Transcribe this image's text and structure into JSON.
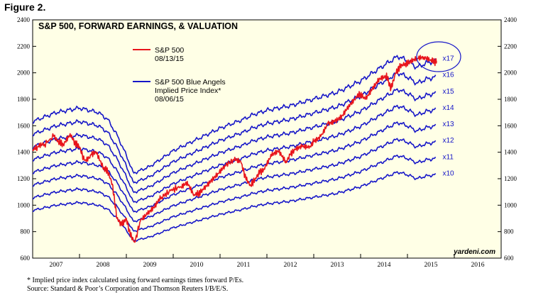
{
  "figure_label": "Figure 2.",
  "footnote": {
    "line1": "*  Implied price index calculated using forward earnings times forward P/Es.",
    "line2": "Source: Standard & Poor’s Corporation and Thomson Reuters I/B/E/S."
  },
  "colors": {
    "plot_bg": "#FFFFE6",
    "sp500": "#E8141B",
    "blue_angels": "#1515C8",
    "watermark": "#000000"
  },
  "chart_data": {
    "type": "line",
    "title": "S&P 500, FORWARD EARNINGS, & VALUATION",
    "watermark": "yardeni.com",
    "legend": [
      {
        "key": "sp500",
        "lines": [
          "S&P 500",
          "08/13/15"
        ]
      },
      {
        "key": "blue_angels",
        "lines": [
          "S&P 500 Blue Angels",
          "Implied Price Index*",
          "08/06/15"
        ]
      }
    ],
    "legend_position": "top-center",
    "x_axis": {
      "min": 2007.0,
      "max": 2017.0,
      "ticks": [
        "2007",
        "2008",
        "2009",
        "2010",
        "2011",
        "2012",
        "2013",
        "2014",
        "2015",
        "2016"
      ]
    },
    "y_axis": {
      "min": 600,
      "max": 2400,
      "ticks": [
        600,
        800,
        1000,
        1200,
        1400,
        1600,
        1800,
        2000,
        2200,
        2400
      ],
      "both_sides": true
    },
    "grid": false,
    "forward_earnings": {
      "x": [
        2007.0,
        2007.5,
        2008.0,
        2008.4,
        2008.6,
        2008.8,
        2009.0,
        2009.15,
        2009.5,
        2010.0,
        2010.5,
        2011.0,
        2011.5,
        2011.7,
        2012.0,
        2012.5,
        2013.0,
        2013.5,
        2014.0,
        2014.5,
        2014.8,
        2015.0,
        2015.2,
        2015.4,
        2015.6
      ],
      "values": [
        96,
        100,
        102,
        100,
        97,
        90,
        81,
        73,
        76,
        83,
        88,
        93,
        97,
        99,
        101,
        103,
        106,
        109,
        114,
        121,
        125,
        123,
        120,
        122,
        123
      ]
    },
    "multiples": [
      {
        "label": "x10",
        "multiple": 10
      },
      {
        "label": "x11",
        "multiple": 11
      },
      {
        "label": "x12",
        "multiple": 12
      },
      {
        "label": "x13",
        "multiple": 13
      },
      {
        "label": "x14",
        "multiple": 14
      },
      {
        "label": "x15",
        "multiple": 15
      },
      {
        "label": "x16",
        "multiple": 16
      },
      {
        "label": "x17",
        "multiple": 17
      }
    ],
    "highlight": {
      "labels": [
        "x17",
        "x16"
      ],
      "shape": "ellipse"
    },
    "sp500": {
      "x": [
        2007.0,
        2007.1,
        2007.25,
        2007.45,
        2007.55,
        2007.65,
        2007.8,
        2007.9,
        2008.0,
        2008.1,
        2008.25,
        2008.35,
        2008.5,
        2008.6,
        2008.7,
        2008.8,
        2008.9,
        2009.0,
        2009.08,
        2009.18,
        2009.3,
        2009.45,
        2009.6,
        2009.75,
        2009.95,
        2010.15,
        2010.3,
        2010.45,
        2010.55,
        2010.65,
        2010.8,
        2010.95,
        2011.1,
        2011.3,
        2011.45,
        2011.55,
        2011.65,
        2011.75,
        2011.85,
        2011.95,
        2012.1,
        2012.25,
        2012.4,
        2012.5,
        2012.6,
        2012.75,
        2012.9,
        2013.0,
        2013.15,
        2013.3,
        2013.45,
        2013.6,
        2013.75,
        2013.9,
        2014.0,
        2014.1,
        2014.25,
        2014.4,
        2014.55,
        2014.6,
        2014.65,
        2014.75,
        2014.85,
        2014.95,
        2015.05,
        2015.2,
        2015.35,
        2015.5,
        2015.58,
        2015.62
      ],
      "values": [
        1420,
        1440,
        1460,
        1520,
        1480,
        1460,
        1540,
        1470,
        1440,
        1340,
        1380,
        1400,
        1280,
        1260,
        1160,
        900,
        850,
        900,
        780,
        720,
        880,
        930,
        980,
        1060,
        1110,
        1140,
        1180,
        1080,
        1090,
        1120,
        1180,
        1240,
        1300,
        1340,
        1320,
        1200,
        1150,
        1200,
        1250,
        1270,
        1370,
        1400,
        1320,
        1380,
        1420,
        1440,
        1430,
        1480,
        1520,
        1620,
        1640,
        1680,
        1760,
        1820,
        1840,
        1800,
        1880,
        1960,
        1980,
        1930,
        1880,
        2000,
        2050,
        2070,
        2080,
        2110,
        2120,
        2100,
        2080,
        2090
      ]
    }
  }
}
